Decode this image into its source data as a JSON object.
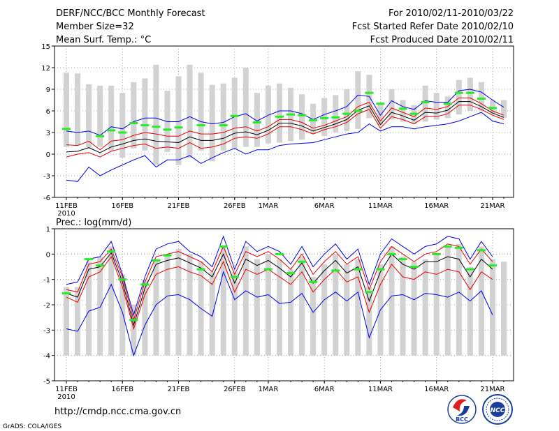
{
  "header": {
    "title": "DERF/NCC/BCC Monthly Forecast",
    "member_size": "Member Size=32",
    "variable": "Mean Surf. Temp.: °C",
    "forecast_period": "For 2010/02/11-2010/03/22",
    "start_date": "Fcst Started Refer Date 2010/02/10",
    "produced_date": "Fcst Produced Date 2010/02/11"
  },
  "footer": {
    "url": "http://cmdp.ncc.cma.gov.cn",
    "grads": "GrADS: COLA/IGES",
    "logo_bcc": "BCC",
    "logo_ncc": "NCC"
  },
  "colors": {
    "bar": "#d2d2d2",
    "envelope": "#0000e6",
    "spread": "#e60000",
    "mean": "#000000",
    "marker": "#22ee22",
    "grid": "#888888"
  },
  "chart_data": [
    {
      "type": "line",
      "title": "Mean Surf. Temp.: °C",
      "xlabel": "",
      "ylabel": "",
      "ylim": [
        -6,
        15
      ],
      "yticks": [
        -6,
        -3,
        0,
        3,
        6,
        9,
        12,
        15
      ],
      "xtick_labels": [
        "11FEB",
        "16FEB",
        "21FEB",
        "26FEB",
        "1MAR",
        "6MAR",
        "11MAR",
        "16MAR",
        "21MAR"
      ],
      "xtick_index": [
        0,
        5,
        10,
        15,
        18,
        23,
        28,
        33,
        38
      ],
      "year_label": "2010",
      "x": [
        1,
        2,
        3,
        4,
        5,
        6,
        7,
        8,
        9,
        10,
        11,
        12,
        13,
        14,
        15,
        16,
        17,
        18,
        19,
        20,
        21,
        22,
        23,
        24,
        25,
        26,
        27,
        28,
        29,
        30,
        31,
        32,
        33,
        34,
        35,
        36,
        37,
        38,
        39,
        40
      ],
      "bars_low": [
        1.0,
        1.2,
        0.8,
        1.0,
        0.5,
        -0.5,
        0.8,
        0.5,
        -1.5,
        0.3,
        -1.5,
        -0.5,
        0.5,
        -1.0,
        0.5,
        0.8,
        1.0,
        1.0,
        1.5,
        1.6,
        1.8,
        2.0,
        2.8,
        2.5,
        3.0,
        3.2,
        3.5,
        5.0,
        4.0,
        4.8,
        4.5,
        4.2,
        4.5,
        4.8,
        5.0,
        5.5,
        6.0,
        6.0,
        5.5,
        5.0
      ],
      "bars_high": [
        11.3,
        11.2,
        9.7,
        9.5,
        9.5,
        8.5,
        10.0,
        10.5,
        12.4,
        8.8,
        10.8,
        12.4,
        11.3,
        9.6,
        9.8,
        10.6,
        12.0,
        8.5,
        9.5,
        9.8,
        9.2,
        8.3,
        7.0,
        7.8,
        8.2,
        9.0,
        11.5,
        11.0,
        7.0,
        9.0,
        7.5,
        6.8,
        9.5,
        8.5,
        8.0,
        10.3,
        10.6,
        10.0,
        7.5,
        7.5
      ],
      "series": [
        {
          "name": "max",
          "values": [
            -3.6,
            -3.8,
            -1.8,
            -3.0,
            -2.2,
            -1.5,
            -0.8,
            -0.2,
            -1.8,
            -0.8,
            -0.8,
            -0.2,
            -1.3,
            -0.5,
            0.2,
            0.8,
            0.0,
            0.6,
            0.6,
            1.2,
            1.4,
            1.5,
            1.6,
            2.0,
            2.4,
            2.8,
            3.0,
            4.2,
            3.2,
            3.8,
            3.8,
            3.5,
            3.8,
            4.0,
            4.2,
            4.6,
            5.2,
            5.8,
            4.6,
            4.2
          ]
        },
        {
          "name": "min",
          "values": [
            3.2,
            3.0,
            3.2,
            2.6,
            3.8,
            3.5,
            4.5,
            5.0,
            5.0,
            4.5,
            4.5,
            5.2,
            4.5,
            4.2,
            4.4,
            5.2,
            5.6,
            4.6,
            5.4,
            6.0,
            6.0,
            5.6,
            4.8,
            5.5,
            6.0,
            6.6,
            8.2,
            8.0,
            5.4,
            7.4,
            6.6,
            6.2,
            7.4,
            7.2,
            7.2,
            8.8,
            9.0,
            8.6,
            7.5,
            6.5
          ]
        },
        {
          "name": "upper",
          "values": [
            1.3,
            1.2,
            1.8,
            0.6,
            1.8,
            2.0,
            2.6,
            3.0,
            2.8,
            2.5,
            2.5,
            3.2,
            2.8,
            2.8,
            3.0,
            3.6,
            3.8,
            3.2,
            3.8,
            4.8,
            4.8,
            4.4,
            3.6,
            4.0,
            4.6,
            5.2,
            6.6,
            7.2,
            4.6,
            6.4,
            5.8,
            5.2,
            6.4,
            6.2,
            6.6,
            7.8,
            7.8,
            7.0,
            6.0,
            5.4
          ]
        },
        {
          "name": "lower",
          "values": [
            -0.4,
            0.0,
            0.2,
            -0.4,
            0.4,
            0.8,
            1.2,
            1.4,
            0.8,
            1.0,
            0.8,
            1.6,
            0.8,
            1.0,
            1.4,
            2.2,
            2.4,
            2.2,
            2.8,
            3.8,
            3.8,
            3.4,
            2.8,
            3.4,
            3.8,
            4.4,
            5.6,
            6.2,
            3.6,
            5.2,
            4.8,
            4.2,
            5.2,
            5.2,
            5.6,
            6.8,
            6.8,
            6.2,
            5.4,
            4.8
          ]
        },
        {
          "name": "mean",
          "values": [
            0.3,
            0.4,
            0.9,
            0.2,
            1.0,
            1.4,
            1.9,
            2.1,
            1.8,
            1.7,
            1.6,
            2.4,
            1.9,
            1.9,
            2.2,
            2.9,
            3.1,
            2.7,
            3.3,
            4.3,
            4.3,
            3.9,
            3.2,
            3.7,
            4.2,
            4.8,
            6.1,
            6.7,
            4.1,
            5.8,
            5.3,
            4.7,
            5.8,
            5.7,
            6.1,
            7.3,
            7.3,
            6.6,
            5.7,
            5.1
          ]
        }
      ],
      "markers": [
        3.5,
        null,
        null,
        2.5,
        3.3,
        3.0,
        4.3,
        4.0,
        3.8,
        3.4,
        3.7,
        null,
        4.0,
        null,
        4.0,
        5.3,
        null,
        4.4,
        null,
        5.2,
        5.5,
        5.4,
        4.7,
        5.0,
        5.1,
        5.6,
        6.0,
        8.5,
        7.0,
        null,
        6.3,
        5.6,
        7.2,
        null,
        7.0,
        8.5,
        8.5,
        7.7,
        6.4,
        null
      ]
    },
    {
      "type": "line",
      "title": "Prec.: log(mm/d)",
      "xlabel": "",
      "ylabel": "",
      "ylim": [
        -5,
        1
      ],
      "yticks": [
        -5,
        -4,
        -3,
        -2,
        -1,
        0,
        1
      ],
      "xtick_labels": [
        "11FEB",
        "16FEB",
        "21FEB",
        "26FEB",
        "1MAR",
        "6MAR",
        "11MAR",
        "16MAR",
        "21MAR"
      ],
      "xtick_index": [
        0,
        5,
        10,
        15,
        18,
        23,
        28,
        33,
        38
      ],
      "year_label": "2010",
      "x": [
        1,
        2,
        3,
        4,
        5,
        6,
        7,
        8,
        9,
        10,
        11,
        12,
        13,
        14,
        15,
        16,
        17,
        18,
        19,
        20,
        21,
        22,
        23,
        24,
        25,
        26,
        27,
        28,
        29,
        30,
        31,
        32,
        33,
        34,
        35,
        36,
        37,
        38,
        39,
        40
      ],
      "bars_low": [
        -4,
        -4,
        -4,
        -4,
        -4,
        -4,
        -4,
        -4,
        -4,
        -4,
        -4,
        -4,
        -4,
        -4,
        -4,
        -4,
        -4,
        -4,
        -4,
        -4,
        -4,
        -4,
        -4,
        -4,
        -4,
        -4,
        -4,
        -4,
        -4,
        -4,
        -4,
        -4,
        -4,
        -4,
        -4,
        -4,
        -4,
        -4,
        -4,
        -4
      ],
      "bars_high": [
        -1.3,
        -1.3,
        -0.3,
        -0.1,
        0.3,
        -0.8,
        -2.0,
        -1.0,
        -0.2,
        0.0,
        0.2,
        0.0,
        -0.3,
        -0.7,
        0.3,
        -0.7,
        0.3,
        -0.2,
        0.0,
        -0.2,
        -0.6,
        -0.1,
        -0.9,
        -0.4,
        0.0,
        -0.4,
        -0.2,
        -1.3,
        -0.4,
        0.3,
        -0.1,
        -0.3,
        -0.2,
        0.0,
        0.3,
        0.4,
        -0.5,
        0.3,
        -0.2,
        -0.3
      ],
      "series": [
        {
          "name": "max",
          "values": [
            -2.95,
            -3.05,
            -2.25,
            -2.1,
            -1.2,
            -2.3,
            -4.0,
            -2.8,
            -2.0,
            -1.65,
            -1.6,
            -1.8,
            -2.15,
            -2.45,
            -0.7,
            -1.8,
            -1.45,
            -1.7,
            -1.6,
            -1.95,
            -1.9,
            -1.55,
            -2.3,
            -1.8,
            -1.5,
            -1.85,
            -1.5,
            -3.3,
            -2.2,
            -1.65,
            -1.6,
            -1.8,
            -1.55,
            -1.6,
            -1.7,
            -1.5,
            -1.85,
            -1.45,
            -2.4,
            null
          ]
        },
        {
          "name": "min",
          "values": [
            -1.2,
            -1.1,
            -0.2,
            -0.1,
            0.5,
            -0.8,
            -2.4,
            -0.9,
            0.2,
            0.4,
            0.5,
            0.1,
            -0.1,
            -0.5,
            0.7,
            -0.6,
            0.5,
            0.1,
            0.3,
            0.1,
            -0.4,
            0.3,
            -0.5,
            0.0,
            0.4,
            -0.2,
            0.2,
            -1.2,
            0.0,
            0.6,
            0.3,
            0.0,
            0.3,
            0.4,
            0.7,
            0.6,
            -0.2,
            0.5,
            -0.1,
            null
          ]
        },
        {
          "name": "upper",
          "values": [
            -1.4,
            -1.5,
            -0.4,
            -0.3,
            0.2,
            -0.9,
            -2.6,
            -1.1,
            -0.1,
            0.0,
            0.1,
            -0.1,
            -0.3,
            -0.7,
            0.3,
            -0.8,
            0.1,
            -0.1,
            0.1,
            -0.2,
            -0.6,
            0.0,
            -0.8,
            -0.3,
            0.1,
            -0.4,
            -0.1,
            -1.4,
            -0.3,
            0.3,
            0.0,
            -0.3,
            0.0,
            0.1,
            0.4,
            0.3,
            -0.4,
            0.2,
            -0.3,
            null
          ]
        },
        {
          "name": "lower",
          "values": [
            -1.7,
            -1.9,
            -0.9,
            -0.7,
            -0.1,
            -1.3,
            -2.95,
            -1.6,
            -0.8,
            -0.6,
            -0.5,
            -0.7,
            -0.85,
            -1.2,
            -0.3,
            -1.5,
            -0.6,
            -0.8,
            -0.6,
            -0.9,
            -1.2,
            -0.7,
            -1.5,
            -1.0,
            -0.6,
            -1.1,
            -0.9,
            -2.3,
            -1.2,
            -0.4,
            -0.9,
            -1.0,
            -0.7,
            -0.8,
            -0.6,
            -0.7,
            -1.4,
            -0.7,
            -1.0,
            null
          ]
        },
        {
          "name": "mean",
          "values": [
            -1.55,
            -1.7,
            -0.6,
            -0.5,
            0.05,
            -1.1,
            -2.8,
            -1.35,
            -0.4,
            -0.25,
            -0.15,
            -0.35,
            -0.55,
            -0.9,
            0.0,
            -1.15,
            -0.2,
            -0.45,
            -0.25,
            -0.55,
            -0.9,
            -0.35,
            -1.15,
            -0.65,
            -0.25,
            -0.75,
            -0.5,
            -1.85,
            -0.7,
            0.0,
            -0.4,
            -0.6,
            -0.3,
            -0.3,
            -0.1,
            -0.2,
            -0.9,
            -0.2,
            -0.6,
            null
          ]
        }
      ],
      "markers": [
        -1.55,
        null,
        -0.2,
        -0.45,
        0.1,
        -1.0,
        -2.6,
        -1.2,
        -0.25,
        -0.05,
        null,
        null,
        -0.6,
        null,
        0.3,
        -0.9,
        null,
        null,
        -0.6,
        0.0,
        -0.75,
        -0.3,
        -1.1,
        null,
        -0.65,
        null,
        -0.6,
        -1.5,
        -0.6,
        0.0,
        -0.2,
        -0.5,
        null,
        0.0,
        0.3,
        0.25,
        -0.6,
        0.15,
        -0.45,
        null
      ]
    }
  ]
}
